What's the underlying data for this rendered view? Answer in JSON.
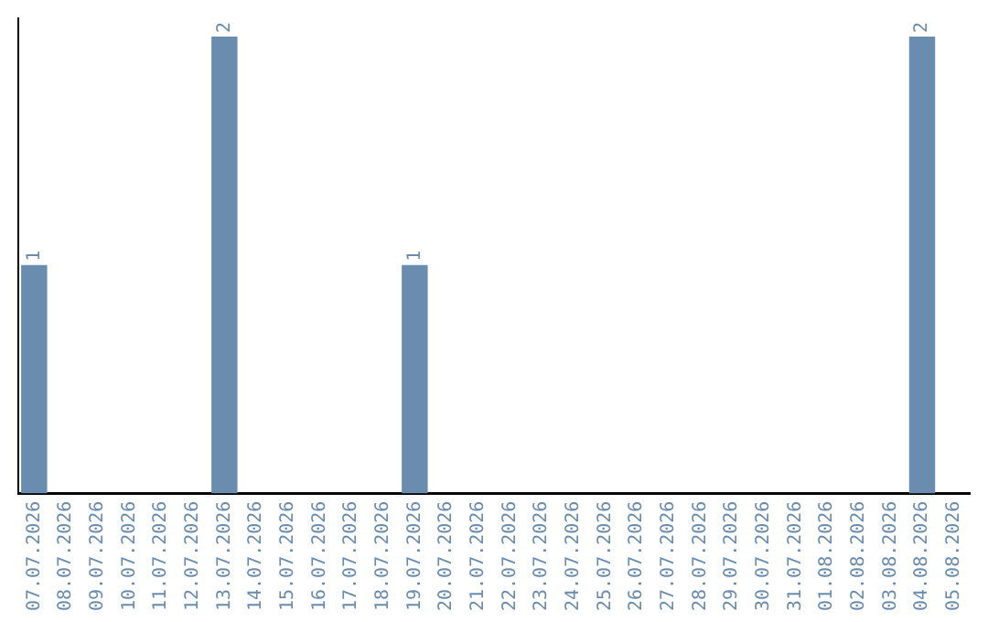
{
  "chart_data": {
    "type": "bar",
    "categories": [
      "07.07.2026",
      "08.07.2026",
      "09.07.2026",
      "10.07.2026",
      "11.07.2026",
      "12.07.2026",
      "13.07.2026",
      "14.07.2026",
      "15.07.2026",
      "16.07.2026",
      "17.07.2026",
      "18.07.2026",
      "19.07.2026",
      "20.07.2026",
      "21.07.2026",
      "22.07.2026",
      "23.07.2026",
      "24.07.2026",
      "25.07.2026",
      "26.07.2026",
      "27.07.2026",
      "28.07.2026",
      "29.07.2026",
      "30.07.2026",
      "31.07.2026",
      "01.08.2026",
      "02.08.2026",
      "03.08.2026",
      "04.08.2026",
      "05.08.2026"
    ],
    "values": [
      1,
      0,
      0,
      0,
      0,
      0,
      2,
      0,
      0,
      0,
      0,
      0,
      1,
      0,
      0,
      0,
      0,
      0,
      0,
      0,
      0,
      0,
      0,
      0,
      0,
      0,
      0,
      0,
      2,
      0
    ],
    "value_labels": [
      "1",
      null,
      null,
      null,
      null,
      null,
      "2",
      null,
      null,
      null,
      null,
      null,
      "1",
      null,
      null,
      null,
      null,
      null,
      null,
      null,
      null,
      null,
      null,
      null,
      null,
      null,
      null,
      null,
      "2",
      null
    ],
    "color": "#6a8caf",
    "ylim": [
      0,
      2.08
    ],
    "tick_labels": "x",
    "grid": false,
    "legend": false
  }
}
